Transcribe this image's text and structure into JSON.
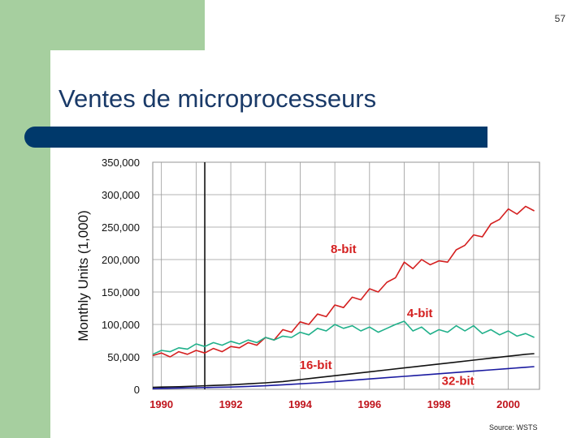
{
  "slide": {
    "number": "57",
    "title": "Ventes de microprocesseurs",
    "source": "Source: WSTS"
  },
  "colors": {
    "background_green": "#a6cf9f",
    "title_bar": "#00396b",
    "title_text": "#1a3a68",
    "tick_year_text": "#c0141c"
  },
  "chart_data": {
    "type": "line",
    "ylabel": "Monthly Units (1,000)",
    "xlabel": "",
    "title": "",
    "xlim": [
      1989.75,
      2000.9
    ],
    "ylim": [
      0,
      350000
    ],
    "x_ticks": [
      {
        "value": 1990,
        "label": "1990"
      },
      {
        "value": 1992,
        "label": "1992"
      },
      {
        "value": 1994,
        "label": "1994"
      },
      {
        "value": 1996,
        "label": "1996"
      },
      {
        "value": 1998,
        "label": "1998"
      },
      {
        "value": 2000,
        "label": "2000"
      }
    ],
    "y_ticks": [
      {
        "value": 0,
        "label": "0"
      },
      {
        "value": 50000,
        "label": "50,000"
      },
      {
        "value": 100000,
        "label": "100,000"
      },
      {
        "value": 150000,
        "label": "150,000"
      },
      {
        "value": 200000,
        "label": "200,000"
      },
      {
        "value": 250000,
        "label": "250,000"
      },
      {
        "value": 300000,
        "label": "300,000"
      },
      {
        "value": 350000,
        "label": "350,000"
      }
    ],
    "grid": true,
    "vertical_marker_x": 1991.25,
    "series": [
      {
        "name": "8-bit",
        "color": "#d42020",
        "points": [
          [
            1989.75,
            52000
          ],
          [
            1990.0,
            56000
          ],
          [
            1990.25,
            50000
          ],
          [
            1990.5,
            58000
          ],
          [
            1990.75,
            54000
          ],
          [
            1991.0,
            60000
          ],
          [
            1991.25,
            56000
          ],
          [
            1991.5,
            63000
          ],
          [
            1991.75,
            58000
          ],
          [
            1992.0,
            66000
          ],
          [
            1992.25,
            64000
          ],
          [
            1992.5,
            72000
          ],
          [
            1992.75,
            68000
          ],
          [
            1993.0,
            80000
          ],
          [
            1993.25,
            76000
          ],
          [
            1993.5,
            92000
          ],
          [
            1993.75,
            88000
          ],
          [
            1994.0,
            104000
          ],
          [
            1994.25,
            100000
          ],
          [
            1994.5,
            116000
          ],
          [
            1994.75,
            112000
          ],
          [
            1995.0,
            130000
          ],
          [
            1995.25,
            126000
          ],
          [
            1995.5,
            142000
          ],
          [
            1995.75,
            138000
          ],
          [
            1996.0,
            155000
          ],
          [
            1996.25,
            150000
          ],
          [
            1996.5,
            165000
          ],
          [
            1996.75,
            172000
          ],
          [
            1997.0,
            196000
          ],
          [
            1997.25,
            186000
          ],
          [
            1997.5,
            200000
          ],
          [
            1997.75,
            192000
          ],
          [
            1998.0,
            198000
          ],
          [
            1998.25,
            196000
          ],
          [
            1998.5,
            215000
          ],
          [
            1998.75,
            222000
          ],
          [
            1999.0,
            238000
          ],
          [
            1999.25,
            235000
          ],
          [
            1999.5,
            255000
          ],
          [
            1999.75,
            262000
          ],
          [
            2000.0,
            278000
          ],
          [
            2000.25,
            270000
          ],
          [
            2000.5,
            282000
          ],
          [
            2000.75,
            275000
          ]
        ]
      },
      {
        "name": "4-bit",
        "color": "#20b08a",
        "points": [
          [
            1989.75,
            54000
          ],
          [
            1990.0,
            60000
          ],
          [
            1990.25,
            58000
          ],
          [
            1990.5,
            64000
          ],
          [
            1990.75,
            62000
          ],
          [
            1991.0,
            70000
          ],
          [
            1991.25,
            66000
          ],
          [
            1991.5,
            72000
          ],
          [
            1991.75,
            68000
          ],
          [
            1992.0,
            74000
          ],
          [
            1992.25,
            70000
          ],
          [
            1992.5,
            76000
          ],
          [
            1992.75,
            72000
          ],
          [
            1993.0,
            80000
          ],
          [
            1993.25,
            76000
          ],
          [
            1993.5,
            82000
          ],
          [
            1993.75,
            80000
          ],
          [
            1994.0,
            88000
          ],
          [
            1994.25,
            84000
          ],
          [
            1994.5,
            94000
          ],
          [
            1994.75,
            90000
          ],
          [
            1995.0,
            100000
          ],
          [
            1995.25,
            94000
          ],
          [
            1995.5,
            98000
          ],
          [
            1995.75,
            90000
          ],
          [
            1996.0,
            96000
          ],
          [
            1996.25,
            88000
          ],
          [
            1996.5,
            94000
          ],
          [
            1996.75,
            100000
          ],
          [
            1997.0,
            105000
          ],
          [
            1997.25,
            90000
          ],
          [
            1997.5,
            96000
          ],
          [
            1997.75,
            85000
          ],
          [
            1998.0,
            92000
          ],
          [
            1998.25,
            88000
          ],
          [
            1998.5,
            98000
          ],
          [
            1998.75,
            90000
          ],
          [
            1999.0,
            98000
          ],
          [
            1999.25,
            86000
          ],
          [
            1999.5,
            92000
          ],
          [
            1999.75,
            84000
          ],
          [
            2000.0,
            90000
          ],
          [
            2000.25,
            82000
          ],
          [
            2000.5,
            86000
          ],
          [
            2000.75,
            80000
          ]
        ]
      },
      {
        "name": "16-bit",
        "color": "#111111",
        "points": [
          [
            1989.75,
            3000
          ],
          [
            1990.0,
            3500
          ],
          [
            1990.5,
            4000
          ],
          [
            1991.0,
            5000
          ],
          [
            1991.5,
            6000
          ],
          [
            1992.0,
            7000
          ],
          [
            1992.5,
            8500
          ],
          [
            1993.0,
            10000
          ],
          [
            1993.5,
            12000
          ],
          [
            1994.0,
            15000
          ],
          [
            1994.5,
            18000
          ],
          [
            1995.0,
            21000
          ],
          [
            1995.5,
            24000
          ],
          [
            1996.0,
            27000
          ],
          [
            1996.5,
            30000
          ],
          [
            1997.0,
            33000
          ],
          [
            1997.5,
            36000
          ],
          [
            1998.0,
            39000
          ],
          [
            1998.5,
            42000
          ],
          [
            1999.0,
            45000
          ],
          [
            1999.5,
            48000
          ],
          [
            2000.0,
            51000
          ],
          [
            2000.5,
            54000
          ],
          [
            2000.75,
            55000
          ]
        ]
      },
      {
        "name": "32-bit",
        "color": "#1a1aa0",
        "points": [
          [
            1989.75,
            1000
          ],
          [
            1990.0,
            1500
          ],
          [
            1990.5,
            2000
          ],
          [
            1991.0,
            2500
          ],
          [
            1991.5,
            3000
          ],
          [
            1992.0,
            3500
          ],
          [
            1992.5,
            4500
          ],
          [
            1993.0,
            5500
          ],
          [
            1993.5,
            7000
          ],
          [
            1994.0,
            8500
          ],
          [
            1994.5,
            10000
          ],
          [
            1995.0,
            12000
          ],
          [
            1995.5,
            14000
          ],
          [
            1996.0,
            16000
          ],
          [
            1996.5,
            18000
          ],
          [
            1997.0,
            20000
          ],
          [
            1997.5,
            22000
          ],
          [
            1998.0,
            24000
          ],
          [
            1998.5,
            26000
          ],
          [
            1999.0,
            28000
          ],
          [
            1999.5,
            30000
          ],
          [
            2000.0,
            32000
          ],
          [
            2000.5,
            34000
          ],
          [
            2000.75,
            35000
          ]
        ]
      }
    ],
    "series_labels": [
      {
        "text": "8-bit",
        "x": 1995.25,
        "y": 210000,
        "color": "#d42020"
      },
      {
        "text": "4-bit",
        "x": 1997.45,
        "y": 111000,
        "color": "#d42020"
      },
      {
        "text": "16-bit",
        "x": 1994.45,
        "y": 31000,
        "color": "#d42020"
      },
      {
        "text": "32-bit",
        "x": 1998.55,
        "y": 7000,
        "color": "#d42020"
      }
    ]
  }
}
